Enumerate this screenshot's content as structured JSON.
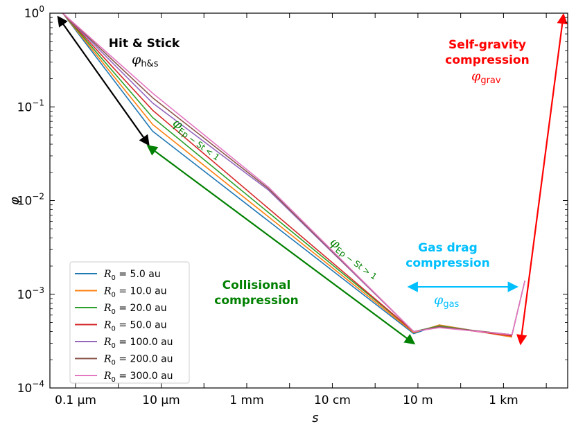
{
  "chart_data": {
    "type": "line",
    "x_scale": "log",
    "y_scale": "log",
    "xlabel": "s",
    "ylabel": "φ",
    "xlim_log10_m": [
      -7.6,
      4.5
    ],
    "ylim": [
      0.0001,
      1
    ],
    "x_ticks": [
      {
        "log10": -7,
        "label": "0.1 µm"
      },
      {
        "log10": -5,
        "label": "10 µm"
      },
      {
        "log10": -3,
        "label": "1 mm"
      },
      {
        "log10": -1,
        "label": "10 cm"
      },
      {
        "log10": 1,
        "label": "10 m"
      },
      {
        "log10": 3,
        "label": "1 km"
      }
    ],
    "y_ticks": [
      {
        "value": 0.0001,
        "base": "10",
        "exp": "−4"
      },
      {
        "value": 0.001,
        "base": "10",
        "exp": "−3"
      },
      {
        "value": 0.01,
        "base": "10",
        "exp": "−2"
      },
      {
        "value": 0.1,
        "base": "10",
        "exp": "−1"
      },
      {
        "value": 1,
        "base": "10",
        "exp": "0"
      }
    ],
    "grid": false,
    "legend_position": "lower-left",
    "series": [
      {
        "name": "R0 = 5.0 au",
        "legend_main": "R",
        "legend_sub": "0",
        "legend_rest": " = 5.0 au",
        "color": "#1f77b4",
        "points": [
          [
            -7.3,
            1.0
          ],
          [
            -5.2,
            0.055
          ],
          [
            0.9,
            0.00038
          ],
          [
            1.5,
            0.00047
          ],
          [
            3.2,
            0.00035
          ]
        ]
      },
      {
        "name": "R0 = 10.0 au",
        "legend_main": "R",
        "legend_sub": "0",
        "legend_rest": " = 10.0 au",
        "color": "#ff7f0e",
        "points": [
          [
            -7.3,
            1.0
          ],
          [
            -5.2,
            0.065
          ],
          [
            0.9,
            0.00039
          ],
          [
            1.5,
            0.00047
          ],
          [
            3.2,
            0.00035
          ]
        ]
      },
      {
        "name": "R0 = 20.0 au",
        "legend_main": "R",
        "legend_sub": "0",
        "legend_rest": " = 20.0 au",
        "color": "#2ca02c",
        "points": [
          [
            -7.3,
            1.0
          ],
          [
            -5.2,
            0.077
          ],
          [
            0.9,
            0.0004
          ],
          [
            1.5,
            0.00046
          ],
          [
            3.2,
            0.00036
          ]
        ]
      },
      {
        "name": "R0 = 50.0 au",
        "legend_main": "R",
        "legend_sub": "0",
        "legend_rest": " = 50.0 au",
        "color": "#d62728",
        "points": [
          [
            -7.3,
            1.0
          ],
          [
            -5.2,
            0.092
          ],
          [
            0.9,
            0.0004
          ],
          [
            1.5,
            0.00045
          ],
          [
            3.2,
            0.00036
          ]
        ]
      },
      {
        "name": "R0 = 100.0 au",
        "legend_main": "R",
        "legend_sub": "0",
        "legend_rest": " = 100.0 au",
        "color": "#9467bd",
        "points": [
          [
            -7.3,
            1.0
          ],
          [
            -5.2,
            0.11
          ],
          [
            -2.5,
            0.013
          ],
          [
            0.9,
            0.0004
          ],
          [
            1.5,
            0.00045
          ],
          [
            3.2,
            0.00037
          ],
          [
            3.5,
            0.0014
          ]
        ]
      },
      {
        "name": "R0 = 200.0 au",
        "legend_main": "R",
        "legend_sub": "0",
        "legend_rest": " = 200.0 au",
        "color": "#8c564b",
        "points": [
          [
            -7.3,
            1.0
          ],
          [
            -5.2,
            0.125
          ],
          [
            -2.5,
            0.0135
          ],
          [
            0.9,
            0.0004
          ],
          [
            1.5,
            0.00045
          ],
          [
            3.2,
            0.00037
          ],
          [
            3.5,
            0.0014
          ]
        ]
      },
      {
        "name": "R0 = 300.0 au",
        "legend_main": "R",
        "legend_sub": "0",
        "legend_rest": " = 300.0 au",
        "color": "#e377c2",
        "points": [
          [
            -7.3,
            1.0
          ],
          [
            -5.2,
            0.14
          ],
          [
            -2.5,
            0.014
          ],
          [
            0.9,
            0.0004
          ],
          [
            1.5,
            0.00044
          ],
          [
            3.2,
            0.00037
          ],
          [
            3.5,
            0.0014
          ]
        ]
      }
    ],
    "annotations": {
      "hit_stick": {
        "title": "Hit & Stick",
        "symbol": "φ",
        "subscript": "h&s",
        "color": "#000000",
        "arrow_from": [
          -7.4,
          0.9
        ],
        "arrow_to": [
          -5.3,
          0.04
        ]
      },
      "ep_st_lt1": {
        "symbol": "φ",
        "subscript": "Ep − St < 1",
        "color": "#008000"
      },
      "ep_st_gt1": {
        "symbol": "φ",
        "subscript": "Ep − St > 1",
        "color": "#008000"
      },
      "collisional": {
        "line1": "Collisional",
        "line2": "compression",
        "color": "#008000",
        "arrow_from": [
          -5.3,
          0.038
        ],
        "arrow_to": [
          0.9,
          0.0003
        ]
      },
      "gas_drag": {
        "line1": "Gas drag",
        "line2": "compression",
        "symbol": "φ",
        "subscript": "gas",
        "color": "#00bfff",
        "arrow_from": [
          0.8,
          0.0012
        ],
        "arrow_to": [
          3.3,
          0.0012
        ]
      },
      "self_gravity": {
        "line1": "Self-gravity",
        "line2": "compression",
        "symbol": "φ",
        "subscript": "grav",
        "color": "#ff0000",
        "arrow_from": [
          3.4,
          0.0003
        ],
        "arrow_to": [
          4.4,
          0.95
        ]
      }
    }
  }
}
